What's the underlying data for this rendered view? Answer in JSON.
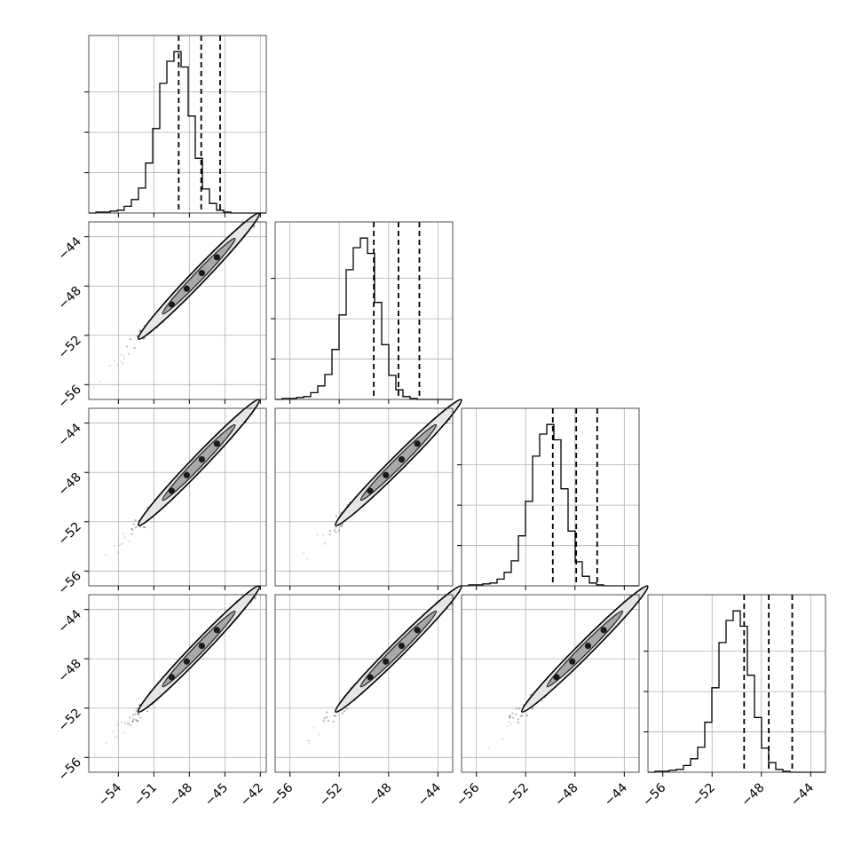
{
  "chart_data": {
    "type": "corner",
    "n_params": 4,
    "panel_ranges": [
      [
        -56.5,
        -41.5
      ],
      [
        -57.2,
        -42.8
      ],
      [
        -57.2,
        -42.8
      ],
      [
        -57.2,
        -42.8
      ]
    ],
    "x_ticks": [
      [
        -54,
        -51,
        -48,
        -45,
        -42
      ],
      [
        -56,
        -52,
        -48,
        -44
      ],
      [
        -56,
        -52,
        -48,
        -44
      ],
      [
        -56,
        -52,
        -48,
        -44
      ]
    ],
    "x_tick_labels": [
      [
        "−54",
        "−51",
        "−48",
        "−45",
        "−42"
      ],
      [
        "−56",
        "−52",
        "−48",
        "−44"
      ],
      [
        "−56",
        "−52",
        "−48",
        "−44"
      ],
      [
        "−56",
        "−52",
        "−48",
        "−44"
      ]
    ],
    "y_ticks": [
      -44,
      -48,
      -52,
      -56
    ],
    "y_tick_labels": [
      "−44",
      "−48",
      "−52",
      "−56"
    ],
    "grid": true,
    "hist_bins": 25,
    "hist_counts": [
      [
        0,
        1,
        1,
        2,
        3,
        7,
        14,
        26,
        52,
        88,
        135,
        158,
        168,
        152,
        101,
        57,
        25,
        10,
        3,
        1,
        0,
        0,
        0,
        0,
        0
      ],
      [
        0,
        1,
        1,
        2,
        3,
        7,
        14,
        26,
        52,
        88,
        135,
        158,
        168,
        152,
        101,
        57,
        25,
        10,
        3,
        1,
        0,
        0,
        0,
        0,
        0
      ],
      [
        0,
        1,
        1,
        2,
        3,
        7,
        14,
        26,
        52,
        88,
        135,
        158,
        168,
        152,
        101,
        57,
        25,
        10,
        3,
        1,
        0,
        0,
        0,
        0,
        0
      ],
      [
        0,
        1,
        1,
        2,
        3,
        7,
        14,
        26,
        52,
        88,
        135,
        158,
        168,
        152,
        101,
        57,
        25,
        10,
        3,
        1,
        0,
        0,
        0,
        0,
        0
      ]
    ],
    "quantiles": [
      [
        -48.9,
        -47.0,
        -45.4
      ],
      [
        -49.2,
        -47.2,
        -45.5
      ],
      [
        -49.8,
        -47.9,
        -46.2
      ],
      [
        -49.4,
        -47.4,
        -45.5
      ]
    ],
    "scatter_center": -47.2,
    "scatter_spread": 3.0,
    "scatter_points": 450
  }
}
